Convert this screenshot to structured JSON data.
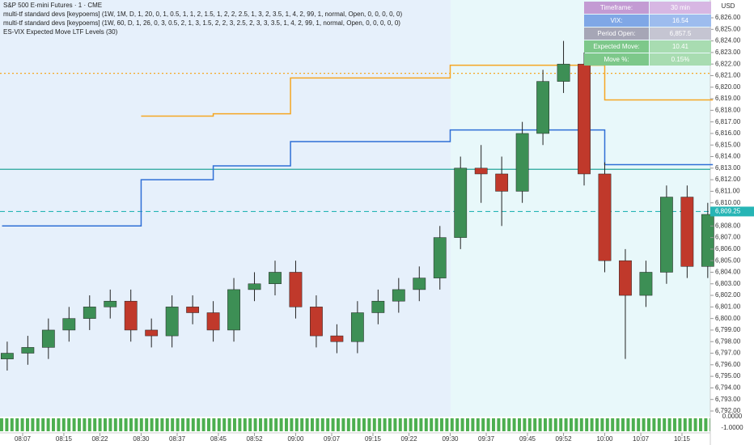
{
  "chart_data": {
    "type": "candlestick",
    "title": "S&P 500 E-mini Futures · 1 · CME",
    "indicators": [
      "multi-tf standard devs [keypoems] (1W, 1M, D, 1, 20, 0, 1, 0.5, 1, 1, 2, 1.5, 1, 2, 2, 2.5, 1, 3, 2, 3.5, 1, 4, 2, 99, 1, normal, Open, 0, 0, 0, 0, 0)",
      "multi-tf standard devs [keypoems] (1W, 60, D, 1, 26, 0, 3, 0.5, 2, 1, 3, 1.5, 2, 2, 3, 2.5, 2, 3, 3, 3.5, 1, 4, 2, 99, 1, normal, Open, 0, 0, 0, 0, 0)",
      "ES-VIX Expected Move LTF Levels (30)"
    ],
    "currency": "USD",
    "info_table": [
      [
        "Timeframe:",
        "30 min"
      ],
      [
        "VIX:",
        "16.54"
      ],
      [
        "Period Open:",
        "6,857.5"
      ],
      [
        "Expected Move:",
        "10.41"
      ],
      [
        "Move %:",
        "0.15%"
      ]
    ],
    "x": [
      484,
      488,
      492,
      496,
      500,
      504,
      508,
      512,
      516,
      520,
      524,
      528,
      532,
      536,
      540,
      544,
      548,
      552,
      556,
      560,
      564,
      568,
      572,
      576,
      580,
      584,
      588,
      592,
      596,
      600,
      604,
      608,
      612,
      616,
      620
    ],
    "open": [
      6796.5,
      6797.0,
      6797.5,
      6799.0,
      6800.0,
      6801.0,
      6801.5,
      6799.0,
      6798.5,
      6801.0,
      6800.5,
      6799.0,
      6802.5,
      6803.0,
      6804.0,
      6801.0,
      6798.5,
      6798.0,
      6800.5,
      6801.5,
      6802.5,
      6803.5,
      6807.0,
      6813.0,
      6812.5,
      6811.0,
      6816.0,
      6820.5,
      6822.0,
      6812.5,
      6805.0,
      6802.0,
      6804.0,
      6810.5,
      6804.5
    ],
    "high": [
      6798.0,
      6798.5,
      6800.0,
      6801.0,
      6802.0,
      6802.5,
      6802.5,
      6800.0,
      6802.0,
      6802.0,
      6801.5,
      6803.5,
      6804.0,
      6805.0,
      6805.0,
      6802.0,
      6799.5,
      6801.5,
      6802.5,
      6803.5,
      6804.5,
      6808.0,
      6814.0,
      6815.0,
      6814.0,
      6817.0,
      6821.5,
      6824.0,
      6823.0,
      6813.5,
      6806.0,
      6805.0,
      6811.5,
      6811.5,
      6810.0
    ],
    "low": [
      6795.5,
      6796.0,
      6796.5,
      6798.0,
      6799.0,
      6800.0,
      6798.0,
      6797.5,
      6797.5,
      6799.5,
      6798.0,
      6798.0,
      6801.5,
      6802.0,
      6800.0,
      6797.5,
      6797.0,
      6797.0,
      6799.5,
      6800.5,
      6801.5,
      6802.5,
      6806.0,
      6810.0,
      6808.0,
      6810.0,
      6815.0,
      6819.5,
      6811.5,
      6804.0,
      6796.5,
      6801.0,
      6803.0,
      6803.5,
      6803.5
    ],
    "close": [
      6797.0,
      6797.5,
      6799.0,
      6800.0,
      6801.0,
      6801.5,
      6799.0,
      6798.5,
      6801.0,
      6800.5,
      6799.0,
      6802.5,
      6803.0,
      6804.0,
      6801.0,
      6798.5,
      6798.0,
      6800.5,
      6801.5,
      6802.5,
      6803.5,
      6807.0,
      6813.0,
      6812.5,
      6811.0,
      6816.0,
      6820.5,
      6822.0,
      6812.5,
      6805.0,
      6802.0,
      6804.0,
      6810.5,
      6804.5,
      6809.0
    ],
    "up_color": "#3d8f55",
    "down_color": "#c0392b",
    "levels": [
      {
        "color": "#f5a623",
        "x": [
          510,
          524,
          539,
          570,
          600
        ],
        "values": [
          6817.5,
          6817.7,
          6820.8,
          6821.9,
          6818.9
        ]
      },
      {
        "color": "#2f6fd6",
        "x": [
          483,
          510,
          524,
          539,
          570,
          600
        ],
        "values": [
          6808.0,
          6812.0,
          6813.2,
          6815.3,
          6816.3,
          6813.3
        ]
      }
    ],
    "hlines": [
      {
        "value": 6812.9,
        "color": "#26a69a",
        "style": "solid"
      },
      {
        "value": 6809.25,
        "label": "6,809.25",
        "color": "#26b5b5",
        "style": "dashed"
      },
      {
        "value": 6821.2,
        "color": "#f5a623",
        "style": "dotted"
      }
    ],
    "xlim": [
      483,
      621
    ],
    "xticks": [
      {
        "value": 487,
        "label": "08:07"
      },
      {
        "value": 495,
        "label": "08:15"
      },
      {
        "value": 502,
        "label": "08:22"
      },
      {
        "value": 510,
        "label": "08:30"
      },
      {
        "value": 517,
        "label": "08:37"
      },
      {
        "value": 525,
        "label": "08:45"
      },
      {
        "value": 532,
        "label": "08:52"
      },
      {
        "value": 540,
        "label": "09:00"
      },
      {
        "value": 547,
        "label": "09:07"
      },
      {
        "value": 555,
        "label": "09:15"
      },
      {
        "value": 562,
        "label": "09:22"
      },
      {
        "value": 570,
        "label": "09:30"
      },
      {
        "value": 577,
        "label": "09:37"
      },
      {
        "value": 585,
        "label": "09:45"
      },
      {
        "value": 592,
        "label": "09:52"
      },
      {
        "value": 600,
        "label": "10:00"
      },
      {
        "value": 607,
        "label": "10:07"
      },
      {
        "value": 615,
        "label": "10:15"
      }
    ],
    "ylim": [
      6792,
      6826
    ],
    "yticks": [
      {
        "value": 6792,
        "label": "6,792.00"
      },
      {
        "value": 6793,
        "label": "6,793.00"
      },
      {
        "value": 6794,
        "label": "6,794.00"
      },
      {
        "value": 6795,
        "label": "6,795.00"
      },
      {
        "value": 6796,
        "label": "6,796.00"
      },
      {
        "value": 6797,
        "label": "6,797.00"
      },
      {
        "value": 6798,
        "label": "6,798.00"
      },
      {
        "value": 6799,
        "label": "6,799.00"
      },
      {
        "value": 6800,
        "label": "6,800.00"
      },
      {
        "value": 6801,
        "label": "6,801.00"
      },
      {
        "value": 6802,
        "label": "6,802.00"
      },
      {
        "value": 6803,
        "label": "6,803.00"
      },
      {
        "value": 6804,
        "label": "6,804.00"
      },
      {
        "value": 6805,
        "label": "6,805.00"
      },
      {
        "value": 6806,
        "label": "6,806.00"
      },
      {
        "value": 6807,
        "label": "6,807.00"
      },
      {
        "value": 6808,
        "label": "6,808.00"
      },
      {
        "value": 6810,
        "label": "6,810.00"
      },
      {
        "value": 6811,
        "label": "6,811.00"
      },
      {
        "value": 6812,
        "label": "6,812.00"
      },
      {
        "value": 6813,
        "label": "6,813.00"
      },
      {
        "value": 6814,
        "label": "6,814.00"
      },
      {
        "value": 6815,
        "label": "6,815.00"
      },
      {
        "value": 6816,
        "label": "6,816.00"
      },
      {
        "value": 6817,
        "label": "6,817.00"
      },
      {
        "value": 6818,
        "label": "6,818.00"
      },
      {
        "value": 6819,
        "label": "6,819.00"
      },
      {
        "value": 6820,
        "label": "6,820.00"
      },
      {
        "value": 6821,
        "label": "6,821.00"
      },
      {
        "value": 6822,
        "label": "6,822.00"
      },
      {
        "value": 6823,
        "label": "6,823.00"
      },
      {
        "value": 6824,
        "label": "6,824.00"
      },
      {
        "value": 6825,
        "label": "6,825.00"
      },
      {
        "value": 6826,
        "label": "6,826.00"
      }
    ],
    "lower_pane_labels": [
      "0.0000",
      "-1.0000"
    ]
  }
}
